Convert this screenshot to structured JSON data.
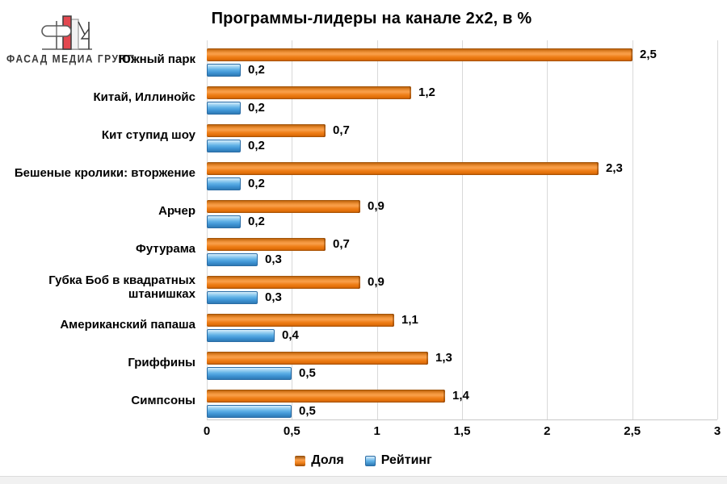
{
  "logo": {
    "text": "ФАСАД МЕДИА ГРУПП"
  },
  "chart_data": {
    "type": "bar",
    "orientation": "horizontal",
    "title": "Программы-лидеры на канале 2х2, в %",
    "categories": [
      "Южный парк",
      "Китай, Иллинойс",
      "Кит ступид шоу",
      "Бешеные кролики: вторжение",
      "Арчер",
      "Футурама",
      "Губка Боб в квадратных штанишках",
      "Американский папаша",
      "Гриффины",
      "Симпсоны"
    ],
    "series": [
      {
        "name": "Доля",
        "color": "#E8790E",
        "values": [
          2.5,
          1.2,
          0.7,
          2.3,
          0.9,
          0.7,
          0.9,
          1.1,
          1.3,
          1.4
        ],
        "labels": [
          "2,5",
          "1,2",
          "0,7",
          "2,3",
          "0,9",
          "0,7",
          "0,9",
          "1,1",
          "1,3",
          "1,4"
        ]
      },
      {
        "name": "Рейтинг",
        "color": "#47A0DB",
        "values": [
          0.2,
          0.2,
          0.2,
          0.2,
          0.2,
          0.3,
          0.3,
          0.4,
          0.5,
          0.5
        ],
        "labels": [
          "0,2",
          "0,2",
          "0,2",
          "0,2",
          "0,2",
          "0,3",
          "0,3",
          "0,4",
          "0,5",
          "0,5"
        ]
      }
    ],
    "xlabel": "",
    "ylabel": "",
    "xlim": [
      0,
      3
    ],
    "x_ticks": [
      "0",
      "0,5",
      "1",
      "1,5",
      "2",
      "2,5",
      "3"
    ],
    "grid": true,
    "legend_position": "bottom",
    "gridline_color": "#D9D9D9"
  }
}
